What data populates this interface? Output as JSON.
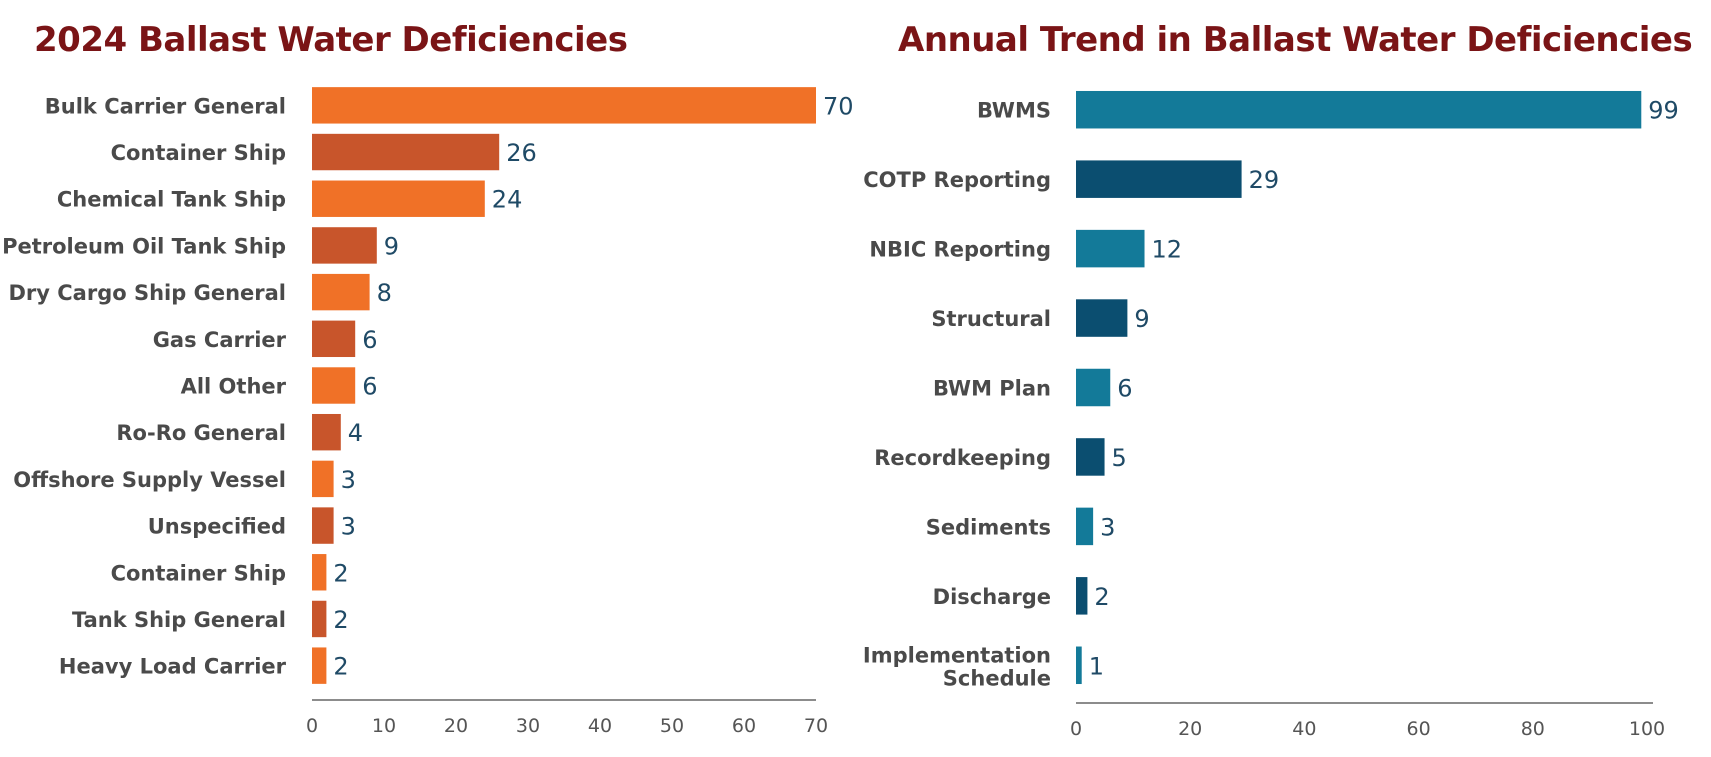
{
  "chart_data": [
    {
      "type": "bar",
      "orientation": "horizontal",
      "title": "2024 Ballast Water Deficiencies",
      "categories": [
        "Bulk Carrier General",
        "Container Ship",
        "Chemical Tank Ship",
        "Petroleum Oil Tank Ship",
        "Dry Cargo Ship General",
        "Gas Carrier",
        "All Other",
        "Ro-Ro General",
        "Offshore Supply Vessel",
        "Unspecified",
        "Container Ship",
        "Tank Ship General",
        "Heavy Load Carrier"
      ],
      "values": [
        70,
        26,
        24,
        9,
        8,
        6,
        6,
        4,
        3,
        3,
        2,
        2,
        2
      ],
      "bar_colors": [
        "#f07127",
        "#c8552b"
      ],
      "xlim": [
        0,
        70
      ],
      "xticks": [
        0,
        10,
        20,
        30,
        40,
        50,
        60,
        70
      ],
      "xlabel": "",
      "ylabel": "",
      "grid": false,
      "data_labels": true
    },
    {
      "type": "bar",
      "orientation": "horizontal",
      "title": "Annual Trend in Ballast Water Deficiencies",
      "categories": [
        "BWMS",
        "COTP Reporting",
        "NBIC Reporting",
        "Structural",
        "BWM Plan",
        "Recordkeeping",
        "Sediments",
        "Discharge",
        "Implementation Schedule"
      ],
      "values": [
        99,
        29,
        12,
        9,
        6,
        5,
        3,
        2,
        1
      ],
      "bar_colors": [
        "#137a99",
        "#0b4e70"
      ],
      "xlim": [
        0,
        100
      ],
      "xticks": [
        0,
        20,
        40,
        60,
        80,
        100
      ],
      "xlabel": "",
      "ylabel": "",
      "grid": false,
      "data_labels": true
    }
  ]
}
